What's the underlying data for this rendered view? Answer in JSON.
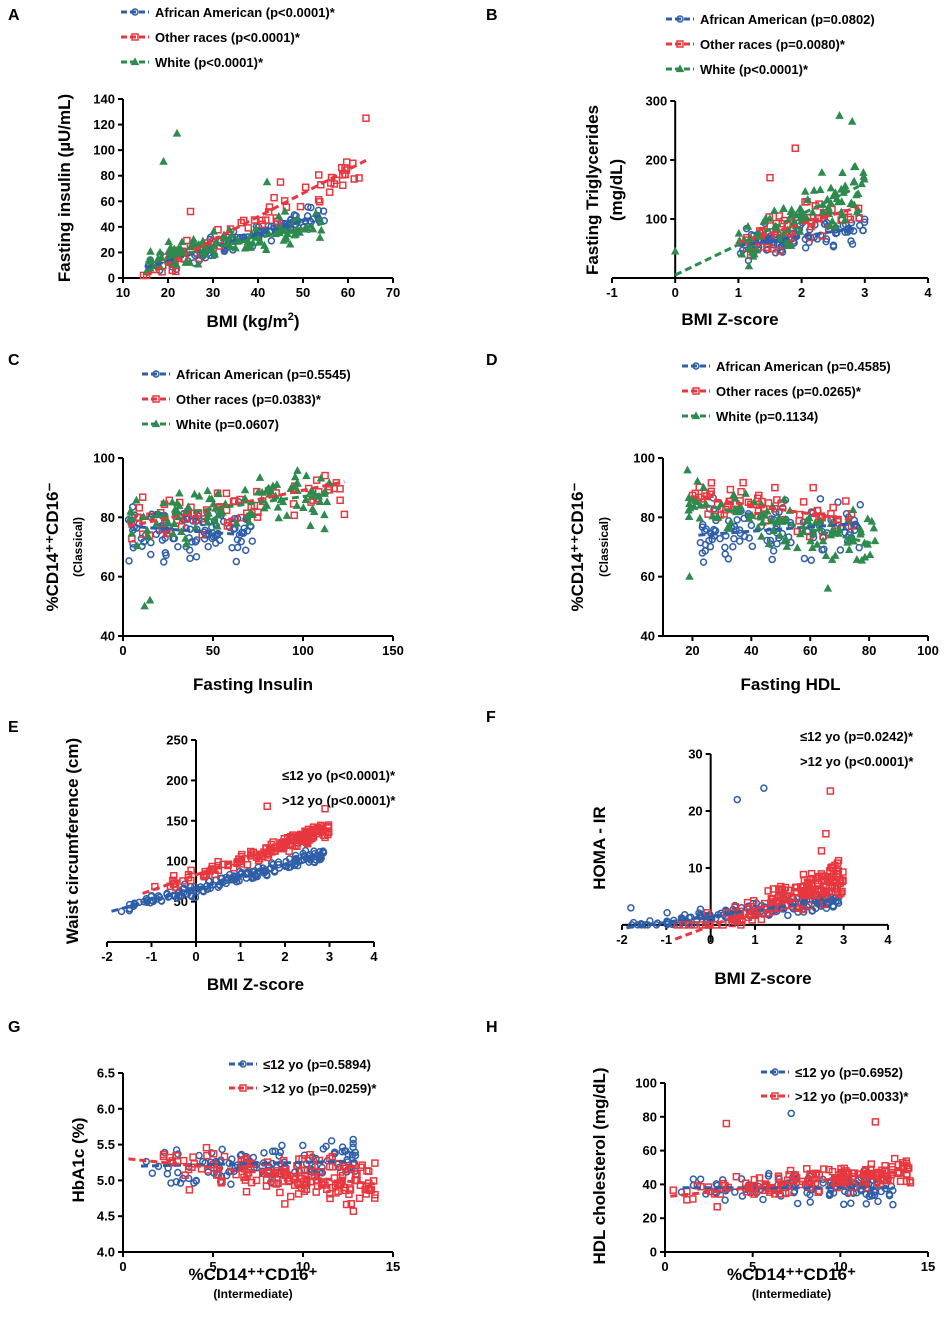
{
  "colors": {
    "blue": "#2f5ea8",
    "red": "#e8373e",
    "green": "#2e8b4e"
  },
  "chart_data": [
    {
      "id": "A",
      "letter": "A",
      "type": "scatter",
      "xlabel": "BMI (kg/m",
      "xlabel_sup": "2",
      "xlabel_end": ")",
      "ylabel": "Fasting insulin (µU/mL)",
      "ylabel_sub": "",
      "xlim": [
        10,
        70
      ],
      "ylim": [
        0,
        140
      ],
      "xticks": [
        10,
        20,
        30,
        40,
        50,
        60,
        70
      ],
      "yticks": [
        0,
        20,
        40,
        60,
        80,
        100,
        120,
        140
      ],
      "legend": [
        {
          "name": "African American (p<0.0001)*",
          "color": "blue",
          "marker": "circle"
        },
        {
          "name": "Other races (p<0.0001)*",
          "color": "red",
          "marker": "square"
        },
        {
          "name": "White (p<0.0001)*",
          "color": "green",
          "marker": "triangle"
        }
      ],
      "series": [
        {
          "color": "blue",
          "marker": "circle",
          "fit": [
            [
              15,
              8
            ],
            [
              55,
              50
            ]
          ],
          "cx": [
            15,
            55
          ],
          "cy": [
            5,
            60
          ],
          "n": 110,
          "slope": 1.05,
          "intercept": -8,
          "spread": 8,
          "seed": 11
        },
        {
          "color": "red",
          "marker": "square",
          "fit": [
            [
              15,
              2
            ],
            [
              64,
              92
            ]
          ],
          "cx": [
            14,
            64
          ],
          "cy": [
            2,
            125
          ],
          "n": 70,
          "slope": 1.84,
          "intercept": -25.6,
          "spread": 10,
          "seed": 12,
          "extra": [
            [
              64,
              125
            ],
            [
              25,
              52
            ],
            [
              45,
              75
            ]
          ]
        },
        {
          "color": "green",
          "marker": "triangle",
          "fit": [
            [
              15,
              12
            ],
            [
              55,
              43
            ]
          ],
          "cx": [
            15,
            55
          ],
          "cy": [
            2,
            115
          ],
          "n": 110,
          "slope": 0.78,
          "intercept": 0.3,
          "spread": 11,
          "seed": 13,
          "extra": [
            [
              19,
              91
            ],
            [
              22,
              113
            ],
            [
              42,
              75
            ],
            [
              46,
              52
            ]
          ]
        }
      ]
    },
    {
      "id": "B",
      "letter": "B",
      "type": "scatter",
      "xlabel": "BMI Z-score",
      "xlabel_sup": "",
      "xlabel_end": "",
      "ylabel": "Fasting Triglycerides",
      "ylabel_sub": "(mg/dL)",
      "xlim": [
        -1,
        4
      ],
      "ylim": [
        0,
        300
      ],
      "xticks": [
        -1,
        0,
        1,
        2,
        3,
        4
      ],
      "yticks": [
        100,
        200,
        300
      ],
      "legend": [
        {
          "name": "African American (p=0.0802)",
          "color": "blue",
          "marker": "circle"
        },
        {
          "name": "Other races (p=0.0080)*",
          "color": "red",
          "marker": "square"
        },
        {
          "name": "White (p<0.0001)*",
          "color": "green",
          "marker": "triangle"
        }
      ],
      "series": [
        {
          "color": "blue",
          "marker": "circle",
          "fit": [
            [
              1.0,
              55
            ],
            [
              2.9,
              85
            ]
          ],
          "cx": [
            1.0,
            3.0
          ],
          "cy": [
            20,
            190
          ],
          "n": 100,
          "slope": 15,
          "intercept": 40,
          "spread": 22,
          "seed": 21
        },
        {
          "color": "red",
          "marker": "square",
          "fit": [
            [
              1.0,
              60
            ],
            [
              2.9,
              120
            ]
          ],
          "cx": [
            1.0,
            3.0
          ],
          "cy": [
            20,
            225
          ],
          "n": 55,
          "slope": 31,
          "intercept": 28,
          "spread": 35,
          "seed": 22,
          "extra": [
            [
              1.9,
              220
            ],
            [
              1.5,
              170
            ]
          ]
        },
        {
          "color": "green",
          "marker": "triangle",
          "fit": [
            [
              0.0,
              5
            ],
            [
              2.9,
              155
            ]
          ],
          "cx": [
            1.0,
            3.0
          ],
          "cy": [
            20,
            280
          ],
          "n": 95,
          "slope": 52,
          "intercept": 5,
          "spread": 45,
          "seed": 23,
          "extra": [
            [
              0.0,
              45
            ],
            [
              2.6,
              275
            ],
            [
              2.8,
              265
            ]
          ]
        }
      ]
    },
    {
      "id": "C",
      "letter": "C",
      "type": "scatter",
      "xlabel": "Fasting Insulin",
      "xlabel_sup": "",
      "xlabel_end": "",
      "ylabel": "%CD14⁺⁺CD16⁻",
      "ylabel_sub": "(Classical)",
      "xlim": [
        0,
        150
      ],
      "ylim": [
        40,
        100
      ],
      "xticks": [
        0,
        50,
        100,
        150
      ],
      "yticks": [
        40,
        60,
        80,
        100
      ],
      "legend": [
        {
          "name": "African American (p=0.5545)",
          "color": "blue",
          "marker": "circle"
        },
        {
          "name": "Other races (p=0.0383)*",
          "color": "red",
          "marker": "square"
        },
        {
          "name": "White (p=0.0607)",
          "color": "green",
          "marker": "triangle"
        }
      ],
      "series": [
        {
          "color": "blue",
          "marker": "circle",
          "fit": [
            [
              3,
              77
            ],
            [
              70,
              74
            ]
          ],
          "cx": [
            3,
            72
          ],
          "cy": [
            52,
            96
          ],
          "n": 110,
          "slope": -0.05,
          "intercept": 77,
          "spread": 9,
          "seed": 31
        },
        {
          "color": "red",
          "marker": "square",
          "fit": [
            [
              3,
              77
            ],
            [
              123,
              92
            ]
          ],
          "cx": [
            3,
            123
          ],
          "cy": [
            55,
            95
          ],
          "n": 65,
          "slope": 0.125,
          "intercept": 76.6,
          "spread": 8,
          "seed": 32,
          "extra": [
            [
              123,
              81
            ]
          ]
        },
        {
          "color": "green",
          "marker": "triangle",
          "fit": [
            [
              3,
              79
            ],
            [
              112,
              88
            ]
          ],
          "cx": [
            3,
            115
          ],
          "cy": [
            50,
            98
          ],
          "n": 100,
          "slope": 0.08,
          "intercept": 79,
          "spread": 8,
          "seed": 33,
          "extra": [
            [
              112,
              76
            ],
            [
              12,
              50
            ],
            [
              15,
              52
            ]
          ]
        }
      ]
    },
    {
      "id": "D",
      "letter": "D",
      "type": "scatter",
      "xlabel": "Fasting HDL",
      "xlabel_sup": "",
      "xlabel_end": "",
      "ylabel": "%CD14⁺⁺CD16⁻",
      "ylabel_sub": "(Classical)",
      "xlim": [
        10,
        100
      ],
      "ylim": [
        40,
        100
      ],
      "xticks": [
        20,
        40,
        60,
        80,
        100
      ],
      "yticks": [
        40,
        60,
        80,
        100
      ],
      "legend": [
        {
          "name": "African American (p=0.4585)",
          "color": "blue",
          "marker": "circle"
        },
        {
          "name": "Other races (p=0.0265)*",
          "color": "red",
          "marker": "square"
        },
        {
          "name": "White (p=0.1134)",
          "color": "green",
          "marker": "triangle"
        }
      ],
      "series": [
        {
          "color": "blue",
          "marker": "circle",
          "fit": [
            [
              22,
              74
            ],
            [
              77,
              78
            ]
          ],
          "cx": [
            22,
            77
          ],
          "cy": [
            52,
            95
          ],
          "n": 110,
          "slope": 0.07,
          "intercept": 72.5,
          "spread": 9,
          "seed": 41
        },
        {
          "color": "red",
          "marker": "square",
          "fit": [
            [
              20,
              87
            ],
            [
              75,
              79
            ]
          ],
          "cx": [
            20,
            75
          ],
          "cy": [
            52,
            95
          ],
          "n": 65,
          "slope": -0.15,
          "intercept": 90,
          "spread": 7,
          "seed": 42,
          "extra": [
            [
              61,
              90
            ],
            [
              48,
              90
            ]
          ]
        },
        {
          "color": "green",
          "marker": "triangle",
          "fit": [
            [
              20,
              85
            ],
            [
              82,
              71
            ]
          ],
          "cx": [
            18,
            82
          ],
          "cy": [
            50,
            98
          ],
          "n": 95,
          "slope": -0.22,
          "intercept": 89.5,
          "spread": 8,
          "seed": 43,
          "extra": [
            [
              19,
              60
            ],
            [
              82,
              72
            ],
            [
              66,
              56
            ]
          ]
        }
      ]
    },
    {
      "id": "E",
      "letter": "E",
      "type": "scatter",
      "xlabel": "BMI Z-score",
      "xlabel_sup": "",
      "xlabel_end": "",
      "ylabel": "Waist circumference (cm)",
      "ylabel_sub": "",
      "xlim": [
        -2,
        4
      ],
      "ylim": [
        0,
        250
      ],
      "xticks": [
        -2,
        -1,
        0,
        1,
        2,
        3,
        4
      ],
      "yticks": [
        50,
        100,
        150,
        200,
        250
      ],
      "legend": [
        {
          "name": "≤12 yo (p<0.0001)*",
          "color": "blue",
          "marker": "none"
        },
        {
          "name": ">12 yo (p<0.0001)*",
          "color": "red",
          "marker": "none"
        }
      ],
      "series": [
        {
          "color": "blue",
          "marker": "circle",
          "fit": [
            [
              -1.9,
              38
            ],
            [
              2.8,
              108
            ]
          ],
          "cx": [
            -1.9,
            2.9
          ],
          "cy": [
            35,
            130
          ],
          "n": 160,
          "slope": 14.9,
          "intercept": 66,
          "spread": 7,
          "seed": 51,
          "xbias": 1.5
        },
        {
          "color": "red",
          "marker": "square",
          "fit": [
            [
              -1.2,
              60
            ],
            [
              2.95,
              140
            ]
          ],
          "cx": [
            -1.2,
            3.0
          ],
          "cy": [
            55,
            170
          ],
          "n": 160,
          "slope": 19.3,
          "intercept": 83,
          "spread": 8,
          "seed": 52,
          "xbias": 2.5,
          "extra": [
            [
              1.6,
              168
            ],
            [
              2.9,
              165
            ],
            [
              -0.5,
              82
            ]
          ]
        }
      ]
    },
    {
      "id": "F",
      "letter": "F",
      "type": "scatter",
      "xlabel": "BMI Z-score",
      "xlabel_sup": "",
      "xlabel_end": "",
      "ylabel": "HOMA - IR",
      "ylabel_sub": "",
      "xlim": [
        -2,
        4
      ],
      "ylim": [
        -3,
        30
      ],
      "xticks": [
        -2,
        -1,
        0,
        1,
        2,
        3,
        4
      ],
      "yticks": [
        10,
        20,
        30
      ],
      "legend": [
        {
          "name": "≤12 yo (p=0.0242)*",
          "color": "blue",
          "marker": "none"
        },
        {
          "name": ">12 yo (p<0.0001)*",
          "color": "red",
          "marker": "none"
        }
      ],
      "series": [
        {
          "color": "blue",
          "marker": "circle",
          "fit": [
            [
              -1.9,
              -0.5
            ],
            [
              2.8,
              4.5
            ]
          ],
          "cx": [
            -1.9,
            2.9
          ],
          "cy": [
            0,
            12
          ],
          "n": 170,
          "slope": 1.07,
          "intercept": 1.5,
          "spread": 1.5,
          "seed": 61,
          "xbias": 1.5,
          "extra": [
            [
              0.6,
              22
            ],
            [
              1.2,
              24
            ],
            [
              -1.8,
              3
            ]
          ]
        },
        {
          "color": "red",
          "marker": "square",
          "fit": [
            [
              -0.8,
              -2.5
            ],
            [
              2.8,
              8
            ]
          ],
          "cx": [
            -1.2,
            3.0
          ],
          "cy": [
            0,
            24
          ],
          "n": 160,
          "slope": 2.9,
          "intercept": -0.2,
          "spread": 2.5,
          "seed": 62,
          "xbias": 2.5,
          "extra": [
            [
              2.7,
              23.5
            ],
            [
              2.6,
              16
            ],
            [
              2.5,
              13
            ]
          ]
        }
      ]
    },
    {
      "id": "G",
      "letter": "G",
      "type": "scatter",
      "xlabel": "%CD14⁺⁺CD16⁺",
      "xlabel_sup": "",
      "xlabel_end": "",
      "xlabel_sub": "(Intermediate)",
      "ylabel": "HbA1c (%)",
      "ylabel_sub": "",
      "xlim": [
        0,
        15
      ],
      "ylim": [
        4.0,
        6.5
      ],
      "xticks": [
        0,
        5,
        10,
        15
      ],
      "yticks": [
        4.0,
        4.5,
        5.0,
        5.5,
        6.0,
        6.5
      ],
      "legend": [
        {
          "name": "≤12 yo (p=0.5894)",
          "color": "blue",
          "marker": "circle"
        },
        {
          "name": ">12 yo (p=0.0259)*",
          "color": "red",
          "marker": "square"
        }
      ],
      "series": [
        {
          "color": "blue",
          "marker": "circle",
          "fit": [
            [
              1,
              5.2
            ],
            [
              13,
              5.27
            ]
          ],
          "cx": [
            0.5,
            13
          ],
          "cy": [
            4.6,
            5.9
          ],
          "n": 120,
          "slope": 0.006,
          "intercept": 5.2,
          "spread": 0.25,
          "seed": 71,
          "xbias": 1.6
        },
        {
          "color": "red",
          "marker": "square",
          "fit": [
            [
              0.3,
              5.3
            ],
            [
              14,
              4.95
            ]
          ],
          "cx": [
            0.2,
            14
          ],
          "cy": [
            4.4,
            6.1
          ],
          "n": 160,
          "slope": -0.026,
          "intercept": 5.3,
          "spread": 0.28,
          "seed": 72,
          "xbias": 1.8,
          "extra": [
            [
              14,
              4.8
            ],
            [
              13,
              5.0
            ]
          ]
        }
      ]
    },
    {
      "id": "H",
      "letter": "H",
      "type": "scatter",
      "xlabel": "%CD14⁺⁺CD16⁺",
      "xlabel_sup": "",
      "xlabel_end": "",
      "xlabel_sub": "(Intermediate)",
      "ylabel": "HDL cholesterol (mg/dL)",
      "ylabel_sub": "",
      "xlim": [
        0,
        15
      ],
      "ylim": [
        0,
        100
      ],
      "xticks": [
        0,
        5,
        10,
        15
      ],
      "yticks": [
        0,
        20,
        40,
        60,
        80,
        100
      ],
      "legend": [
        {
          "name": "≤12 yo (p=0.6952)",
          "color": "blue",
          "marker": "circle"
        },
        {
          "name": ">12 yo (p=0.0033)*",
          "color": "red",
          "marker": "square"
        }
      ],
      "series": [
        {
          "color": "blue",
          "marker": "circle",
          "fit": [
            [
              1,
              38
            ],
            [
              13,
              38
            ]
          ],
          "cx": [
            0.5,
            13
          ],
          "cy": [
            22,
            82
          ],
          "n": 120,
          "slope": 0.0,
          "intercept": 38,
          "spread": 8,
          "seed": 81,
          "xbias": 1.6,
          "extra": [
            [
              7.2,
              82
            ],
            [
              13,
              28
            ]
          ]
        },
        {
          "color": "red",
          "marker": "square",
          "fit": [
            [
              0.3,
              33
            ],
            [
              14,
              48
            ]
          ],
          "cx": [
            0.2,
            14
          ],
          "cy": [
            20,
            80
          ],
          "n": 160,
          "slope": 1.1,
          "intercept": 33,
          "spread": 7,
          "seed": 82,
          "xbias": 1.8,
          "extra": [
            [
              12,
              77
            ],
            [
              14,
              41
            ],
            [
              3.5,
              76
            ]
          ]
        }
      ]
    }
  ]
}
